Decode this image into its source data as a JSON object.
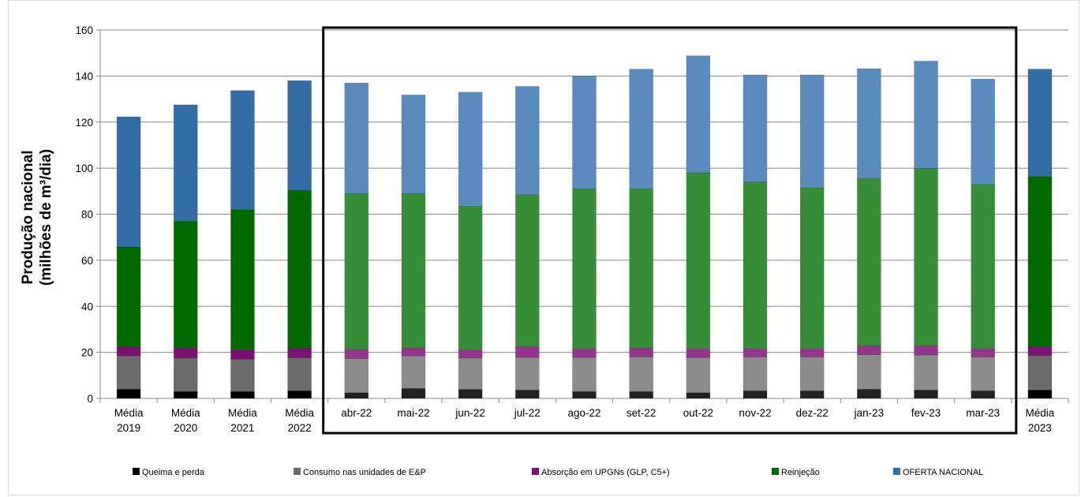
{
  "chart_data": {
    "type": "bar",
    "stacked": true,
    "ylabel": [
      "Produção nacional",
      "(milhões de m³/dia)"
    ],
    "ylim": [
      0,
      160
    ],
    "yticks": [
      0,
      20,
      40,
      60,
      80,
      100,
      120,
      140,
      160
    ],
    "grid": true,
    "legend_position": "bottom",
    "categories": [
      [
        "Média",
        "2019"
      ],
      [
        "Média",
        "2020"
      ],
      [
        "Média",
        "2021"
      ],
      [
        "Média",
        "2022"
      ],
      [
        "abr-22"
      ],
      [
        "mai-22"
      ],
      [
        "jun-22"
      ],
      [
        "jul-22"
      ],
      [
        "ago-22"
      ],
      [
        "set-22"
      ],
      [
        "out-22"
      ],
      [
        "nov-22"
      ],
      [
        "dez-22"
      ],
      [
        "jan-23"
      ],
      [
        "fev-23"
      ],
      [
        "mar-23"
      ],
      [
        "Média",
        "2023"
      ]
    ],
    "highlight_box": {
      "from_category": 4,
      "to_category": 15
    },
    "series": [
      {
        "name": "Queima e perda",
        "color": "#000000",
        "faded_color": "#222222",
        "values": [
          4.0,
          3.0,
          3.0,
          3.3,
          2.5,
          4.3,
          3.9,
          3.6,
          3.0,
          3.0,
          2.5,
          3.3,
          3.3,
          4.0,
          3.6,
          3.3,
          3.6
        ]
      },
      {
        "name": "Consumo nas unidades de E&P",
        "color": "#6b6b6b",
        "faded_color": "#8c8c8c",
        "values": [
          14.5,
          14.5,
          14.0,
          14.3,
          14.8,
          14.2,
          13.6,
          14.2,
          14.8,
          15.0,
          15.2,
          14.7,
          14.7,
          15.0,
          15.2,
          14.7,
          15.0
        ]
      },
      {
        "name": "Absorção em UPGNs (GLP, C5+)",
        "color": "#7a1272",
        "faded_color": "#95368e",
        "values": [
          3.8,
          4.5,
          4.0,
          4.0,
          4.0,
          3.5,
          3.5,
          4.7,
          3.7,
          4.0,
          3.8,
          3.5,
          3.5,
          3.8,
          4.0,
          3.5,
          3.8
        ]
      },
      {
        "name": "Reinjeção",
        "color": "#006a00",
        "faded_color": "#388e38",
        "values": [
          43.5,
          55.0,
          61.0,
          68.7,
          67.7,
          67.0,
          62.5,
          66.0,
          69.5,
          69.0,
          76.5,
          72.5,
          70.0,
          72.7,
          77.2,
          71.5,
          73.9
        ]
      },
      {
        "name": "OFERTA NACIONAL",
        "color": "#346ca4",
        "faded_color": "#5b8bbc",
        "values": [
          56.5,
          50.5,
          51.7,
          47.7,
          48.0,
          42.8,
          49.5,
          47.0,
          49.0,
          52.0,
          50.8,
          46.5,
          49.0,
          47.7,
          46.5,
          45.7,
          46.7
        ]
      }
    ]
  }
}
